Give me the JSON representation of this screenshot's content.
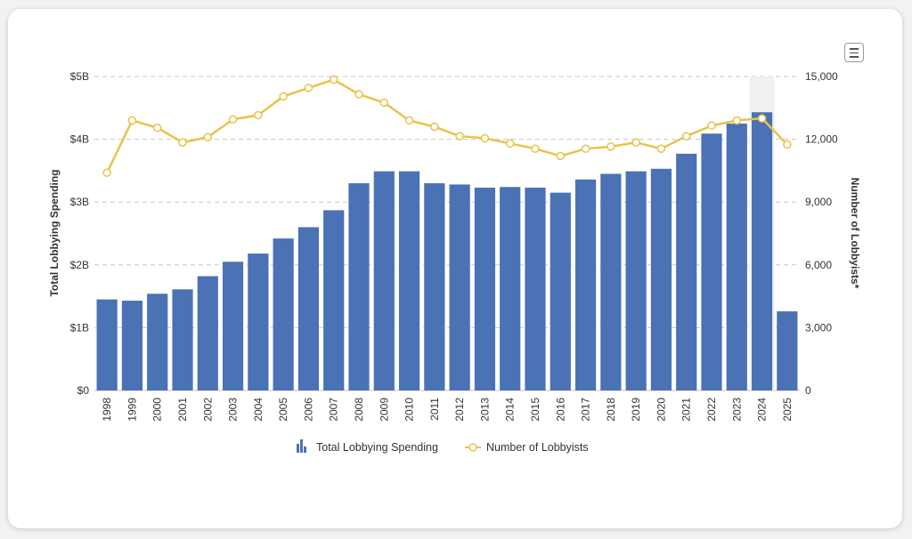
{
  "chart_data": {
    "type": "bar+line",
    "categories": [
      "1998",
      "1999",
      "2000",
      "2001",
      "2002",
      "2003",
      "2004",
      "2005",
      "2006",
      "2007",
      "2008",
      "2009",
      "2010",
      "2011",
      "2012",
      "2013",
      "2014",
      "2015",
      "2016",
      "2017",
      "2018",
      "2019",
      "2020",
      "2021",
      "2022",
      "2023",
      "2024",
      "2025"
    ],
    "series": [
      {
        "name": "Total Lobbying Spending",
        "type": "bar",
        "axis": "left",
        "color": "#4a72b5",
        "values": [
          1.45,
          1.43,
          1.54,
          1.61,
          1.82,
          2.05,
          2.18,
          2.42,
          2.6,
          2.87,
          3.3,
          3.49,
          3.49,
          3.3,
          3.28,
          3.23,
          3.24,
          3.23,
          3.15,
          3.36,
          3.45,
          3.49,
          3.53,
          3.77,
          4.09,
          4.25,
          4.43,
          1.26
        ]
      },
      {
        "name": "Number of Lobbyists",
        "type": "line",
        "axis": "right",
        "color": "#e8c34a",
        "values": [
          10400,
          12900,
          12550,
          11850,
          12100,
          12950,
          13150,
          14050,
          14450,
          14850,
          14150,
          13750,
          12900,
          12600,
          12150,
          12050,
          11800,
          11550,
          11200,
          11550,
          11650,
          11850,
          11550,
          12150,
          12650,
          12900,
          13000,
          11750
        ]
      }
    ],
    "y_left": {
      "label": "Total Lobbying Spending",
      "ticks": [
        "$0",
        "$1B",
        "$2B",
        "$3B",
        "$4B",
        "$5B"
      ],
      "range": [
        0,
        5
      ]
    },
    "y_right": {
      "label": "Number of Lobbyists*",
      "ticks": [
        "0",
        "3,000",
        "6,000",
        "9,000",
        "12,000",
        "15,000"
      ],
      "range": [
        0,
        15000
      ]
    },
    "grid": true,
    "legend": "bottom",
    "highlighted_category": "2024"
  }
}
